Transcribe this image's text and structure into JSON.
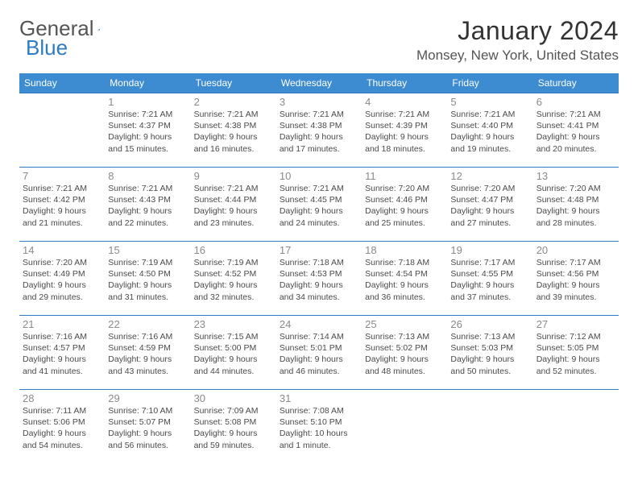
{
  "brand": {
    "part1": "General",
    "part2": "Blue",
    "triangle_color": "#2f7bc4"
  },
  "title": "January 2024",
  "location": "Monsey, New York, United States",
  "colors": {
    "header_bg": "#3d8bd0",
    "header_text": "#ffffff",
    "row_border": "#2f7bc4",
    "daynum": "#8a8a8a",
    "body_text": "#4a4a4a",
    "page_bg": "#ffffff"
  },
  "day_headers": [
    "Sunday",
    "Monday",
    "Tuesday",
    "Wednesday",
    "Thursday",
    "Friday",
    "Saturday"
  ],
  "weeks": [
    [
      null,
      {
        "n": "1",
        "sr": "Sunrise: 7:21 AM",
        "ss": "Sunset: 4:37 PM",
        "d1": "Daylight: 9 hours",
        "d2": "and 15 minutes."
      },
      {
        "n": "2",
        "sr": "Sunrise: 7:21 AM",
        "ss": "Sunset: 4:38 PM",
        "d1": "Daylight: 9 hours",
        "d2": "and 16 minutes."
      },
      {
        "n": "3",
        "sr": "Sunrise: 7:21 AM",
        "ss": "Sunset: 4:38 PM",
        "d1": "Daylight: 9 hours",
        "d2": "and 17 minutes."
      },
      {
        "n": "4",
        "sr": "Sunrise: 7:21 AM",
        "ss": "Sunset: 4:39 PM",
        "d1": "Daylight: 9 hours",
        "d2": "and 18 minutes."
      },
      {
        "n": "5",
        "sr": "Sunrise: 7:21 AM",
        "ss": "Sunset: 4:40 PM",
        "d1": "Daylight: 9 hours",
        "d2": "and 19 minutes."
      },
      {
        "n": "6",
        "sr": "Sunrise: 7:21 AM",
        "ss": "Sunset: 4:41 PM",
        "d1": "Daylight: 9 hours",
        "d2": "and 20 minutes."
      }
    ],
    [
      {
        "n": "7",
        "sr": "Sunrise: 7:21 AM",
        "ss": "Sunset: 4:42 PM",
        "d1": "Daylight: 9 hours",
        "d2": "and 21 minutes."
      },
      {
        "n": "8",
        "sr": "Sunrise: 7:21 AM",
        "ss": "Sunset: 4:43 PM",
        "d1": "Daylight: 9 hours",
        "d2": "and 22 minutes."
      },
      {
        "n": "9",
        "sr": "Sunrise: 7:21 AM",
        "ss": "Sunset: 4:44 PM",
        "d1": "Daylight: 9 hours",
        "d2": "and 23 minutes."
      },
      {
        "n": "10",
        "sr": "Sunrise: 7:21 AM",
        "ss": "Sunset: 4:45 PM",
        "d1": "Daylight: 9 hours",
        "d2": "and 24 minutes."
      },
      {
        "n": "11",
        "sr": "Sunrise: 7:20 AM",
        "ss": "Sunset: 4:46 PM",
        "d1": "Daylight: 9 hours",
        "d2": "and 25 minutes."
      },
      {
        "n": "12",
        "sr": "Sunrise: 7:20 AM",
        "ss": "Sunset: 4:47 PM",
        "d1": "Daylight: 9 hours",
        "d2": "and 27 minutes."
      },
      {
        "n": "13",
        "sr": "Sunrise: 7:20 AM",
        "ss": "Sunset: 4:48 PM",
        "d1": "Daylight: 9 hours",
        "d2": "and 28 minutes."
      }
    ],
    [
      {
        "n": "14",
        "sr": "Sunrise: 7:20 AM",
        "ss": "Sunset: 4:49 PM",
        "d1": "Daylight: 9 hours",
        "d2": "and 29 minutes."
      },
      {
        "n": "15",
        "sr": "Sunrise: 7:19 AM",
        "ss": "Sunset: 4:50 PM",
        "d1": "Daylight: 9 hours",
        "d2": "and 31 minutes."
      },
      {
        "n": "16",
        "sr": "Sunrise: 7:19 AM",
        "ss": "Sunset: 4:52 PM",
        "d1": "Daylight: 9 hours",
        "d2": "and 32 minutes."
      },
      {
        "n": "17",
        "sr": "Sunrise: 7:18 AM",
        "ss": "Sunset: 4:53 PM",
        "d1": "Daylight: 9 hours",
        "d2": "and 34 minutes."
      },
      {
        "n": "18",
        "sr": "Sunrise: 7:18 AM",
        "ss": "Sunset: 4:54 PM",
        "d1": "Daylight: 9 hours",
        "d2": "and 36 minutes."
      },
      {
        "n": "19",
        "sr": "Sunrise: 7:17 AM",
        "ss": "Sunset: 4:55 PM",
        "d1": "Daylight: 9 hours",
        "d2": "and 37 minutes."
      },
      {
        "n": "20",
        "sr": "Sunrise: 7:17 AM",
        "ss": "Sunset: 4:56 PM",
        "d1": "Daylight: 9 hours",
        "d2": "and 39 minutes."
      }
    ],
    [
      {
        "n": "21",
        "sr": "Sunrise: 7:16 AM",
        "ss": "Sunset: 4:57 PM",
        "d1": "Daylight: 9 hours",
        "d2": "and 41 minutes."
      },
      {
        "n": "22",
        "sr": "Sunrise: 7:16 AM",
        "ss": "Sunset: 4:59 PM",
        "d1": "Daylight: 9 hours",
        "d2": "and 43 minutes."
      },
      {
        "n": "23",
        "sr": "Sunrise: 7:15 AM",
        "ss": "Sunset: 5:00 PM",
        "d1": "Daylight: 9 hours",
        "d2": "and 44 minutes."
      },
      {
        "n": "24",
        "sr": "Sunrise: 7:14 AM",
        "ss": "Sunset: 5:01 PM",
        "d1": "Daylight: 9 hours",
        "d2": "and 46 minutes."
      },
      {
        "n": "25",
        "sr": "Sunrise: 7:13 AM",
        "ss": "Sunset: 5:02 PM",
        "d1": "Daylight: 9 hours",
        "d2": "and 48 minutes."
      },
      {
        "n": "26",
        "sr": "Sunrise: 7:13 AM",
        "ss": "Sunset: 5:03 PM",
        "d1": "Daylight: 9 hours",
        "d2": "and 50 minutes."
      },
      {
        "n": "27",
        "sr": "Sunrise: 7:12 AM",
        "ss": "Sunset: 5:05 PM",
        "d1": "Daylight: 9 hours",
        "d2": "and 52 minutes."
      }
    ],
    [
      {
        "n": "28",
        "sr": "Sunrise: 7:11 AM",
        "ss": "Sunset: 5:06 PM",
        "d1": "Daylight: 9 hours",
        "d2": "and 54 minutes."
      },
      {
        "n": "29",
        "sr": "Sunrise: 7:10 AM",
        "ss": "Sunset: 5:07 PM",
        "d1": "Daylight: 9 hours",
        "d2": "and 56 minutes."
      },
      {
        "n": "30",
        "sr": "Sunrise: 7:09 AM",
        "ss": "Sunset: 5:08 PM",
        "d1": "Daylight: 9 hours",
        "d2": "and 59 minutes."
      },
      {
        "n": "31",
        "sr": "Sunrise: 7:08 AM",
        "ss": "Sunset: 5:10 PM",
        "d1": "Daylight: 10 hours",
        "d2": "and 1 minute."
      },
      null,
      null,
      null
    ]
  ]
}
